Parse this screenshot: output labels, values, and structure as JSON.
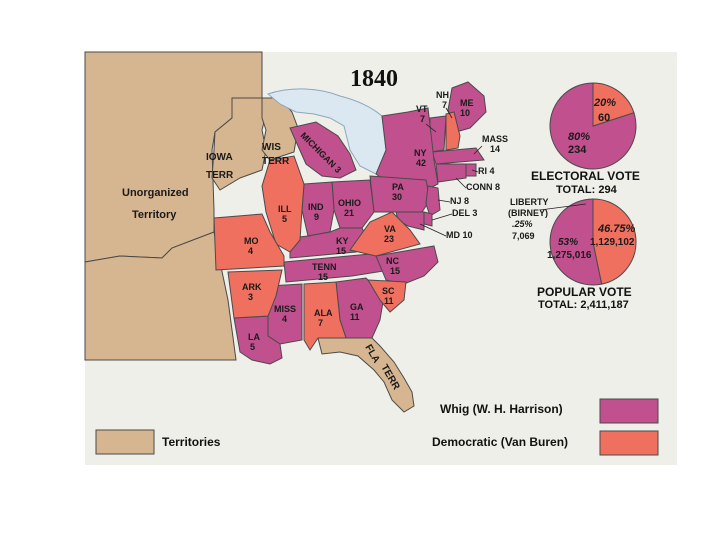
{
  "title": "1840",
  "colors": {
    "background_panel": "#eeefe9",
    "lake": "#dbe8f1",
    "territory": "#d6b690",
    "whig": "#c0508e",
    "democratic": "#f07060",
    "border": "#4a4a4a"
  },
  "territories": {
    "unorganized_1": "Unorganized",
    "unorganized_2": "Territory",
    "iowa_1": "IOWA",
    "iowa_2": "TERR",
    "wis_1": "WIS",
    "wis_2": "TERR",
    "fla_1": "FLA",
    "fla_2": "TERR"
  },
  "states": {
    "me": {
      "name": "ME",
      "votes": "10"
    },
    "nh": {
      "name": "NH",
      "votes": "7"
    },
    "vt": {
      "name": "VT",
      "votes": "7"
    },
    "mass": {
      "name": "MASS",
      "votes": "14"
    },
    "ri": {
      "name": "RI 4",
      "votes": ""
    },
    "conn": {
      "name": "CONN 8",
      "votes": ""
    },
    "ny": {
      "name": "NY",
      "votes": "42"
    },
    "nj": {
      "name": "NJ 8",
      "votes": ""
    },
    "del": {
      "name": "DEL 3",
      "votes": ""
    },
    "md": {
      "name": "MD 10",
      "votes": ""
    },
    "pa": {
      "name": "PA",
      "votes": "30"
    },
    "michigan": {
      "name": "MICHIGAN 3",
      "votes": ""
    },
    "ohio": {
      "name": "OHIO",
      "votes": "21"
    },
    "ind": {
      "name": "IND",
      "votes": "9"
    },
    "ill": {
      "name": "ILL",
      "votes": "5"
    },
    "mo": {
      "name": "MO",
      "votes": "4"
    },
    "ky": {
      "name": "KY",
      "votes": "15"
    },
    "va": {
      "name": "VA",
      "votes": "23"
    },
    "nc": {
      "name": "NC",
      "votes": "15"
    },
    "tenn": {
      "name": "TENN",
      "votes": "15"
    },
    "sc": {
      "name": "SC",
      "votes": "11"
    },
    "ga": {
      "name": "GA",
      "votes": "11"
    },
    "ala": {
      "name": "ALA",
      "votes": "7"
    },
    "miss": {
      "name": "MISS",
      "votes": "4"
    },
    "la": {
      "name": "LA",
      "votes": "5"
    },
    "ark": {
      "name": "ARK",
      "votes": "3"
    }
  },
  "electoral": {
    "dem_pct": "20%",
    "dem_votes": "60",
    "whig_pct": "80%",
    "whig_votes": "234",
    "label": "ELECTORAL VOTE",
    "total": "TOTAL: 294",
    "whig_fraction": 0.8
  },
  "popular": {
    "liberty_1": "LIBERTY",
    "liberty_2": "(BIRNEY)",
    "liberty_3": ".25%",
    "liberty_4": "7,069",
    "dem_pct": "46.75%",
    "dem_votes": "1,129,102",
    "whig_pct": "53%",
    "whig_votes": "1,275,016",
    "label": "POPULAR VOTE",
    "total": "TOTAL: 2,411,187",
    "whig_fraction": 0.53,
    "dem_fraction": 0.4675,
    "liberty_fraction": 0.0025
  },
  "legend": {
    "whig": "Whig (W. H. Harrison)",
    "democratic": "Democratic (Van Buren)",
    "territories": "Territories"
  }
}
